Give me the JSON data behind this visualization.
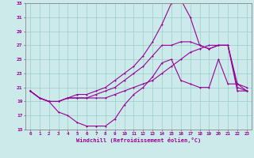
{
  "xlabel": "Windchill (Refroidissement éolien,°C)",
  "bg_color": "#cceaea",
  "grid_color": "#99cccc",
  "line_color": "#990099",
  "xlim": [
    -0.5,
    23.5
  ],
  "ylim": [
    15,
    33
  ],
  "yticks": [
    15,
    17,
    19,
    21,
    23,
    25,
    27,
    29,
    31,
    33
  ],
  "xticks": [
    0,
    1,
    2,
    3,
    4,
    5,
    6,
    7,
    8,
    9,
    10,
    11,
    12,
    13,
    14,
    15,
    16,
    17,
    18,
    19,
    20,
    21,
    22,
    23
  ],
  "line1_dip": [
    20.5,
    19.5,
    19.0,
    17.5,
    17.0,
    16.0,
    15.5,
    15.5,
    15.5,
    16.5,
    18.5,
    20.0,
    21.0,
    22.5,
    24.5,
    25.0,
    22.0,
    21.5,
    21.0,
    21.0,
    25.0,
    21.5,
    21.5,
    21.0
  ],
  "line2_flat": [
    20.5,
    19.5,
    19.0,
    19.0,
    19.5,
    19.5,
    19.5,
    19.5,
    19.5,
    20.0,
    20.5,
    21.0,
    21.5,
    22.0,
    23.0,
    24.0,
    25.0,
    26.0,
    26.5,
    27.0,
    27.0,
    27.0,
    20.5,
    20.5
  ],
  "line3_peak": [
    20.5,
    19.5,
    19.0,
    19.0,
    19.5,
    20.0,
    20.0,
    20.5,
    21.0,
    22.0,
    23.0,
    24.0,
    25.5,
    27.5,
    30.0,
    33.0,
    33.5,
    31.0,
    27.0,
    26.5,
    27.0,
    27.0,
    21.5,
    20.5
  ],
  "line4_mid": [
    20.5,
    19.5,
    19.0,
    19.0,
    19.5,
    19.5,
    19.5,
    20.0,
    20.5,
    21.0,
    22.0,
    23.0,
    24.0,
    25.5,
    27.0,
    27.0,
    27.5,
    27.5,
    27.0,
    26.5,
    27.0,
    27.0,
    21.0,
    20.5
  ]
}
